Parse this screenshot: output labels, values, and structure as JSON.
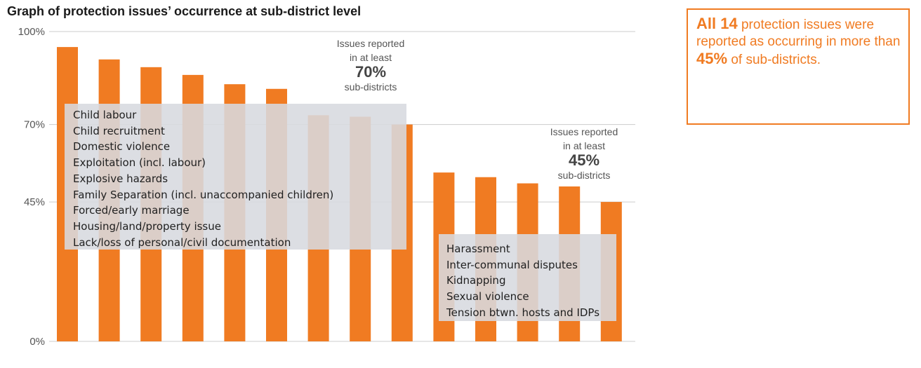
{
  "colors": {
    "bar": "#f07b22",
    "grid": "#cccccc",
    "legend_bg": "#d7dadf",
    "accent": "#f07b22"
  },
  "chart_data": {
    "type": "bar",
    "title": "Graph of protection issues’ occurrence at sub-district level",
    "yticks": [
      "100%",
      "70%",
      "45%",
      "0%"
    ],
    "ylim": [
      0,
      100
    ],
    "grid": true,
    "values": [
      95,
      91,
      88.5,
      86,
      83,
      81.5,
      73,
      72.5,
      70,
      54.5,
      53,
      51,
      50,
      45
    ],
    "callout_70": {
      "line1": "Issues reported",
      "line2": "in at least",
      "pct": "70%",
      "line3": "sub-districts"
    },
    "callout_45": {
      "line1": "Issues reported",
      "line2": "in at least",
      "pct": "45%",
      "line3": "sub-districts"
    },
    "legend_70": [
      "Child labour",
      "Child recruitment",
      "Domestic violence",
      "Exploitation (incl. labour)",
      "Explosive hazards",
      "Family Separation (incl. unaccompanied children)",
      "Forced/early marriage",
      "Housing/land/property issue",
      "Lack/loss of personal/civil documentation"
    ],
    "legend_45": [
      "Harassment",
      "Inter-communal disputes",
      "Kidnapping",
      "Sexual violence",
      "Tension btwn. hosts and IDPs"
    ]
  },
  "summary": {
    "count": "All 14",
    "text1": " protection issues were reported as occurring in more than ",
    "pct": "45%",
    "text2": " of sub-districts."
  }
}
